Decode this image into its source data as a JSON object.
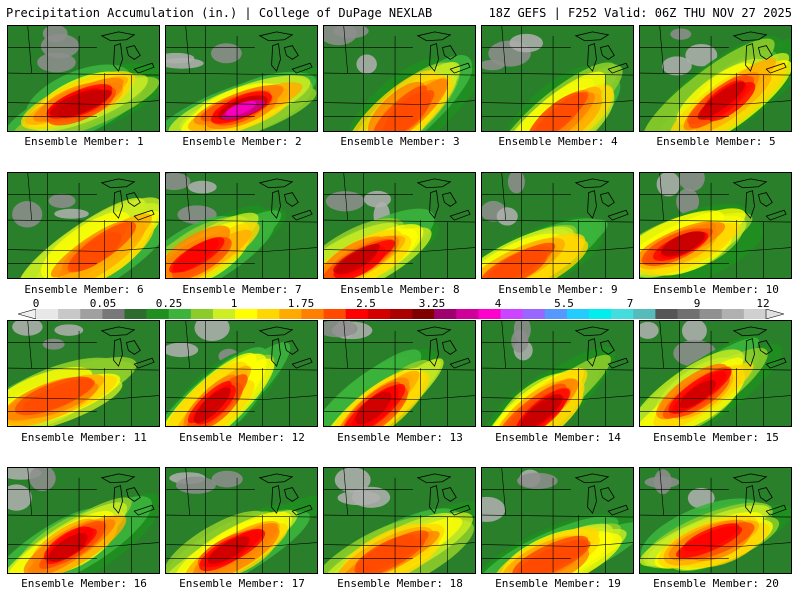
{
  "header": {
    "title": "Precipitation Accumulation (in.) | College of DuPage NEXLAB",
    "info": "18Z GEFS | F252 Valid: 06Z THU NOV 27 2025"
  },
  "members": [
    {
      "label": "Ensemble Member: 1"
    },
    {
      "label": "Ensemble Member: 2"
    },
    {
      "label": "Ensemble Member: 3"
    },
    {
      "label": "Ensemble Member: 4"
    },
    {
      "label": "Ensemble Member: 5"
    },
    {
      "label": "Ensemble Member: 6"
    },
    {
      "label": "Ensemble Member: 7"
    },
    {
      "label": "Ensemble Member: 8"
    },
    {
      "label": "Ensemble Member: 9"
    },
    {
      "label": "Ensemble Member: 10"
    },
    {
      "label": "Ensemble Member: 11"
    },
    {
      "label": "Ensemble Member: 12"
    },
    {
      "label": "Ensemble Member: 13"
    },
    {
      "label": "Ensemble Member: 14"
    },
    {
      "label": "Ensemble Member: 15"
    },
    {
      "label": "Ensemble Member: 16"
    },
    {
      "label": "Ensemble Member: 17"
    },
    {
      "label": "Ensemble Member: 18"
    },
    {
      "label": "Ensemble Member: 19"
    },
    {
      "label": "Ensemble Member: 20"
    }
  ],
  "legend": {
    "labels": [
      "0",
      "0.05",
      "0.25",
      "1",
      "1.75",
      "2.5",
      "3.25",
      "4",
      "5.5",
      "7",
      "9",
      "12"
    ],
    "colors": [
      "#e8e8e8",
      "#c8c8c8",
      "#a0a0a0",
      "#787878",
      "#2e6b2e",
      "#1f8f1f",
      "#3cb43c",
      "#8ccc2a",
      "#ccee22",
      "#ffff00",
      "#ffd700",
      "#ffaa00",
      "#ff7f00",
      "#ff4a00",
      "#ff0000",
      "#d40000",
      "#aa0000",
      "#800000",
      "#a0006e",
      "#d0009a",
      "#ff00cc",
      "#cc44ff",
      "#9966ff",
      "#5599ff",
      "#22ccff",
      "#00eeee",
      "#44dddd",
      "#55bbbb",
      "#555555",
      "#707070",
      "#909090",
      "#b0b0b0",
      "#d0d0d0"
    ]
  }
}
